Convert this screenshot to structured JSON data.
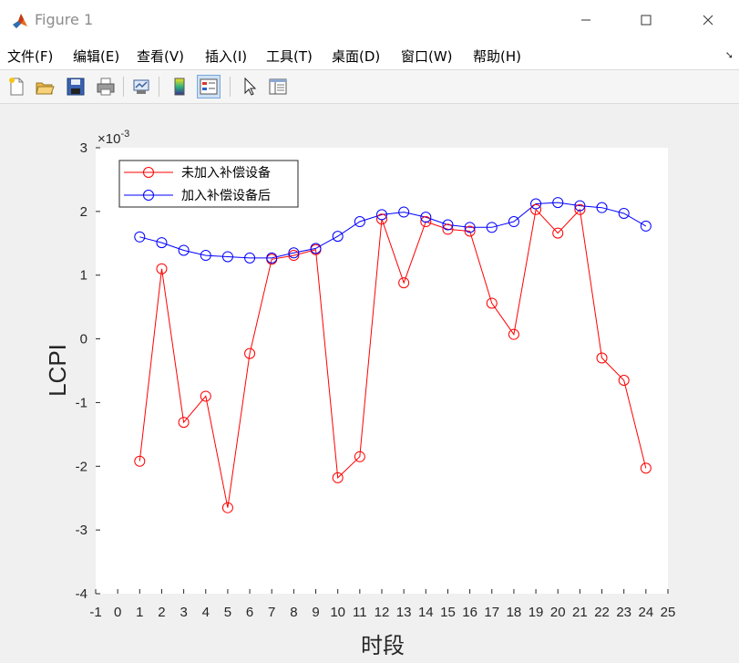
{
  "window": {
    "title": "Figure 1"
  },
  "menu": [
    "文件(F)",
    "编辑(E)",
    "查看(V)",
    "插入(I)",
    "工具(T)",
    "桌面(D)",
    "窗口(W)",
    "帮助(H)"
  ],
  "toolbar_icons": [
    "new-figure-icon",
    "open-file-icon",
    "save-icon",
    "print-icon",
    "link-plot-icon",
    "colorbar-icon",
    "legend-icon",
    "pointer-icon",
    "property-inspector-icon"
  ],
  "chart_data": {
    "type": "line",
    "exponent_label": "×10",
    "exponent_power": "-3",
    "xlabel": "时段",
    "ylabel": "LCPI",
    "xlim": [
      -1,
      25
    ],
    "ylim": [
      -4,
      3
    ],
    "x_ticks": [
      -1,
      0,
      1,
      2,
      3,
      4,
      5,
      6,
      7,
      8,
      9,
      10,
      11,
      12,
      13,
      14,
      15,
      16,
      17,
      18,
      19,
      20,
      21,
      22,
      23,
      24,
      25
    ],
    "y_ticks": [
      -4,
      -3,
      -2,
      -1,
      0,
      1,
      2,
      3
    ],
    "grid": false,
    "legend_position": "top-left",
    "x": [
      1,
      2,
      3,
      4,
      5,
      6,
      7,
      8,
      9,
      10,
      11,
      12,
      13,
      14,
      15,
      16,
      17,
      18,
      19,
      20,
      21,
      22,
      23,
      24
    ],
    "series": [
      {
        "name": "未加入补偿设备",
        "color": "#ff0000",
        "values": [
          -1.92,
          1.1,
          -1.31,
          -0.9,
          -2.65,
          -0.23,
          1.25,
          1.31,
          1.4,
          -2.18,
          -1.85,
          1.88,
          0.88,
          1.84,
          1.72,
          1.69,
          0.56,
          0.07,
          2.03,
          1.66,
          2.03,
          -0.3,
          -0.65,
          -2.03
        ]
      },
      {
        "name": "加入补偿设备后",
        "color": "#0000ff",
        "values": [
          1.6,
          1.51,
          1.39,
          1.31,
          1.29,
          1.27,
          1.27,
          1.35,
          1.42,
          1.61,
          1.84,
          1.95,
          1.99,
          1.91,
          1.79,
          1.75,
          1.75,
          1.84,
          2.12,
          2.14,
          2.09,
          2.06,
          1.97,
          1.77
        ]
      }
    ]
  }
}
